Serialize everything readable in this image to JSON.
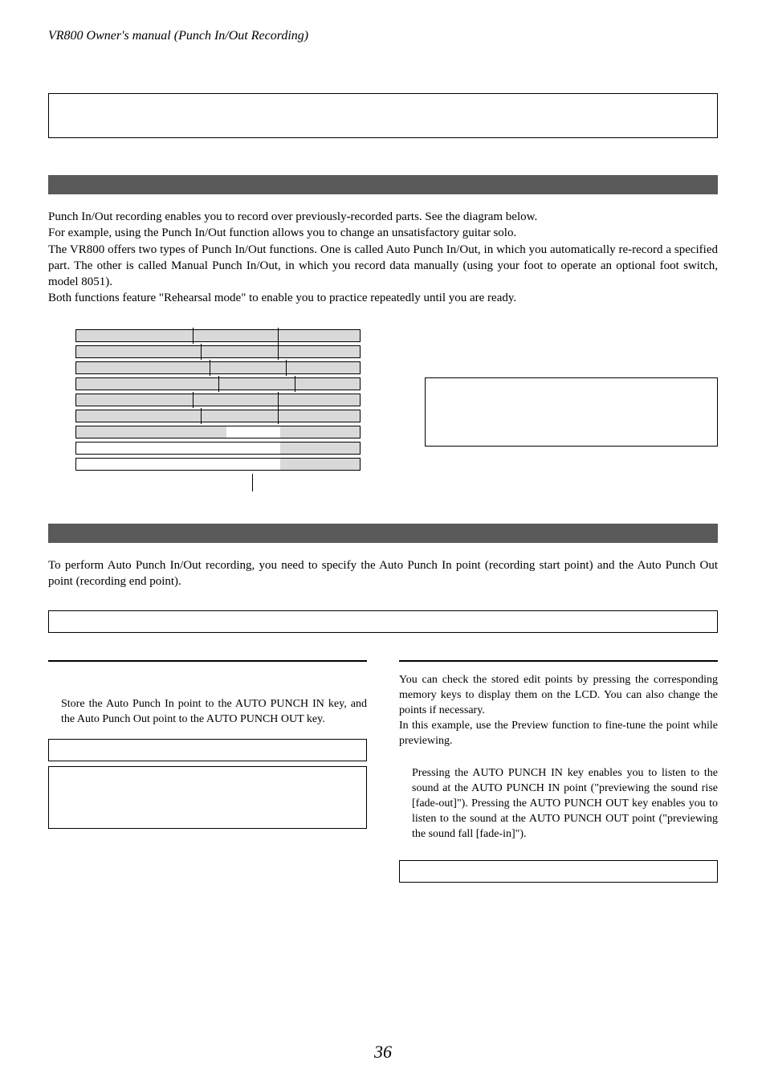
{
  "header": {
    "running": "VR800 Owner's manual (Punch In/Out Recording)"
  },
  "intro": {
    "p1": "Punch In/Out recording enables you to record over previously-recorded parts.  See the diagram below.",
    "p2": "For example, using the Punch In/Out function allows you to change an unsatisfactory guitar solo.",
    "p3": "The VR800 offers two types of Punch In/Out functions.  One is called Auto Punch In/Out, in which you automatically re-record a specified part.  The other is called Manual Punch In/Out, in which you record data manually (using your foot to operate an optional foot switch, model 8051).",
    "p4": "Both functions feature \"Rehearsal mode\" to enable you to practice repeatedly until you are ready."
  },
  "diagram": {
    "tracks": [
      {
        "len_pct": 100,
        "ticks_pct": [
          41,
          71
        ],
        "white": null
      },
      {
        "len_pct": 100,
        "ticks_pct": [
          44,
          71
        ],
        "white": null
      },
      {
        "len_pct": 100,
        "ticks_pct": [
          47,
          74
        ],
        "white": null
      },
      {
        "len_pct": 100,
        "ticks_pct": [
          50,
          77
        ],
        "white": null
      },
      {
        "len_pct": 100,
        "ticks_pct": [
          41,
          71
        ],
        "white": null
      },
      {
        "len_pct": 100,
        "ticks_pct": [
          44,
          71
        ],
        "white": null
      },
      {
        "len_pct": 100,
        "ticks_pct": null,
        "white": [
          53,
          72
        ]
      },
      {
        "len_pct": 100,
        "ticks_pct": null,
        "white": [
          0,
          72
        ]
      },
      {
        "len_pct": 100,
        "ticks_pct": null,
        "white": [
          0,
          72
        ]
      }
    ],
    "down_marker_left_pct": 62
  },
  "auto": {
    "p1": "To perform Auto Punch In/Out recording, you need to specify the Auto Punch In point (recording start point) and the Auto Punch Out point (recording end point)."
  },
  "left": {
    "p1": "Store the Auto Punch In point to the AUTO PUNCH IN key, and the Auto Punch Out point to the AUTO PUNCH OUT key."
  },
  "right": {
    "p1": "You can check the stored edit points by pressing the corresponding memory keys to display them on the LCD. You can also change the points if necessary.",
    "p2": "In this example, use the Preview function to fine-tune the point while previewing.",
    "p3": "Pressing the AUTO PUNCH IN key enables you to listen to the sound at the AUTO PUNCH IN point (\"previewing the sound rise [fade-out]\"). Pressing the AUTO PUNCH OUT key enables you to listen to the sound at the AUTO PUNCH OUT point (\"previewing the sound fall [fade-in]\")."
  },
  "page_number": "36",
  "colors": {
    "section_bar": "#5a5a5a",
    "track_fill": "#d9d9d9",
    "border": "#000000",
    "background": "#ffffff"
  }
}
